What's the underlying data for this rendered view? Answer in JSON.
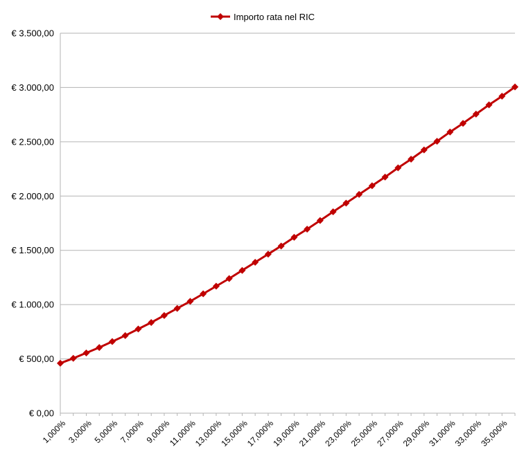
{
  "chart_data": {
    "type": "line",
    "title": "",
    "xlabel": "",
    "ylabel": "",
    "legend_position": "top",
    "grid": true,
    "ylim": [
      0,
      3500
    ],
    "y_ticks": [
      "€ 0,00",
      "€ 500,00",
      "€ 1.000,00",
      "€ 1.500,00",
      "€ 2.000,00",
      "€ 2.500,00",
      "€ 3.000,00",
      "€ 3.500,00"
    ],
    "x": [
      "1,000%",
      "2,000%",
      "3,000%",
      "4,000%",
      "5,000%",
      "6,000%",
      "7,000%",
      "8,000%",
      "9,000%",
      "10,000%",
      "11,000%",
      "12,000%",
      "13,000%",
      "14,000%",
      "15,000%",
      "16,000%",
      "17,000%",
      "18,000%",
      "19,000%",
      "20,000%",
      "21,000%",
      "22,000%",
      "23,000%",
      "24,000%",
      "25,000%",
      "26,000%",
      "27,000%",
      "28,000%",
      "29,000%",
      "30,000%",
      "31,000%",
      "32,000%",
      "33,000%",
      "34,000%",
      "35,000%",
      "36,000%"
    ],
    "x_tick_labels_shown": [
      "1,000%",
      "3,000%",
      "5,000%",
      "7,000%",
      "9,000%",
      "11,000%",
      "13,000%",
      "15,000%",
      "17,000%",
      "19,000%",
      "21,000%",
      "23,000%",
      "25,000%",
      "27,000%",
      "29,000%",
      "31,000%",
      "33,000%",
      "35,000%"
    ],
    "series": [
      {
        "name": "Importo rata nel RIC",
        "color": "#c00000",
        "marker": "diamond",
        "values": [
          460,
          505,
          555,
          605,
          660,
          715,
          775,
          835,
          900,
          965,
          1030,
          1100,
          1170,
          1240,
          1315,
          1390,
          1465,
          1540,
          1620,
          1695,
          1775,
          1855,
          1935,
          2015,
          2095,
          2175,
          2260,
          2340,
          2425,
          2505,
          2590,
          2670,
          2755,
          2840,
          2920,
          3005
        ]
      }
    ]
  }
}
